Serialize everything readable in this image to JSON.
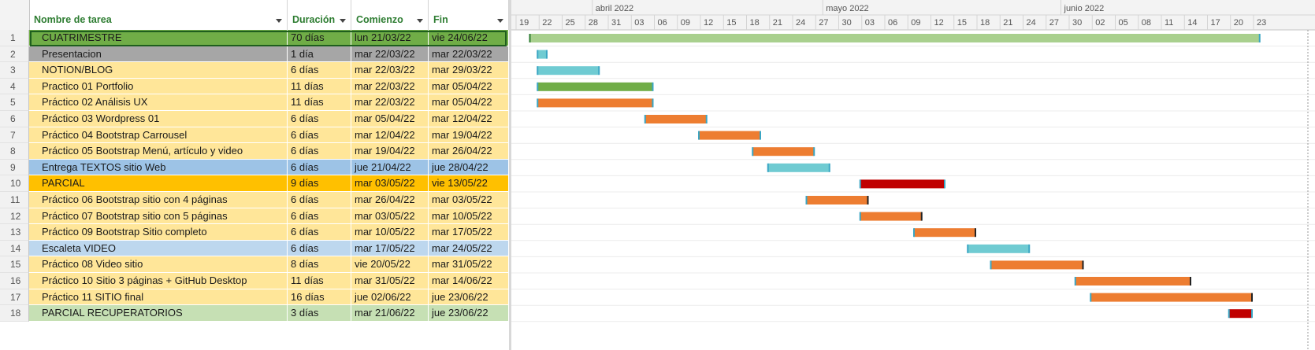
{
  "columns": {
    "name": "Nombre de tarea",
    "duration": "Duración",
    "start": "Comienzo",
    "end": "Fin"
  },
  "timescale": {
    "months": [
      {
        "label": "abril 2022",
        "day": 13
      },
      {
        "label": "mayo 2022",
        "day": 43
      },
      {
        "label": "junio 2022",
        "day": 74
      }
    ],
    "days": [
      "19",
      "22",
      "25",
      "28",
      "31",
      "03",
      "06",
      "09",
      "12",
      "15",
      "18",
      "21",
      "24",
      "27",
      "30",
      "03",
      "06",
      "09",
      "12",
      "15",
      "18",
      "21",
      "24",
      "27",
      "30",
      "02",
      "05",
      "08",
      "11",
      "14",
      "17",
      "20",
      "23"
    ]
  },
  "colors": {
    "summary": "#70ad47",
    "gray": "#a6a6a6",
    "orange": "#ed7d31",
    "teal": "#6fcbd2",
    "red": "#c00000",
    "yellow_bg": "#ffe699",
    "blue_bg": "#9dc3e6",
    "lightblue_bg": "#bdd7ee",
    "gold_bg": "#ffc000",
    "green_bg": "#c6e0b4",
    "green_row": "#70ad47",
    "gray_row": "#a6a6a6"
  },
  "tasks": [
    {
      "id": "1",
      "name": "CUATRIMESTRE",
      "duration": "70 días",
      "start": "lun 21/03/22",
      "end": "vie 24/06/22",
      "bg": "#70ad47",
      "bar": {
        "color": "#a9d08e",
        "s": 2,
        "e": 97
      }
    },
    {
      "id": "2",
      "name": "Presentacion",
      "duration": "1 día",
      "start": "mar 22/03/22",
      "end": "mar 22/03/22",
      "bg": "#a6a6a6",
      "bar": {
        "color": "#6fcbd2",
        "s": 3,
        "e": 4.2
      }
    },
    {
      "id": "3",
      "name": "NOTION/BLOG",
      "duration": "6 días",
      "start": "mar 22/03/22",
      "end": "mar 29/03/22",
      "bg": "#ffe699",
      "bar": {
        "color": "#6fcbd2",
        "s": 3,
        "e": 11
      }
    },
    {
      "id": "4",
      "name": "Practico 01  Portfolio",
      "duration": "11 días",
      "start": "mar 22/03/22",
      "end": "mar 05/04/22",
      "bg": "#ffe699",
      "bar": {
        "color": "#70ad47",
        "s": 3,
        "e": 18
      }
    },
    {
      "id": "5",
      "name": "Práctico 02 Análisis UX",
      "duration": "11 días",
      "start": "mar 22/03/22",
      "end": "mar 05/04/22",
      "bg": "#ffe699",
      "bar": {
        "color": "#ed7d31",
        "s": 3,
        "e": 18
      }
    },
    {
      "id": "6",
      "name": "Práctico 03 Wordpress 01",
      "duration": "6 días",
      "start": "mar 05/04/22",
      "end": "mar 12/04/22",
      "bg": "#ffe699",
      "bar": {
        "color": "#ed7d31",
        "s": 17,
        "e": 25
      }
    },
    {
      "id": "7",
      "name": "Práctico 04 Bootstrap  Carrousel",
      "duration": "6 días",
      "start": "mar 12/04/22",
      "end": "mar 19/04/22",
      "bg": "#ffe699",
      "bar": {
        "color": "#ed7d31",
        "s": 24,
        "e": 32
      }
    },
    {
      "id": "8",
      "name": "Práctico 05 Bootstrap Menú, artículo y video",
      "duration": "6 días",
      "start": "mar 19/04/22",
      "end": "mar 26/04/22",
      "bg": "#ffe699",
      "bar": {
        "color": "#ed7d31",
        "s": 31,
        "e": 39
      }
    },
    {
      "id": "9",
      "name": "Entrega TEXTOS sitio Web",
      "duration": "6 días",
      "start": "jue 21/04/22",
      "end": "jue 28/04/22",
      "bg": "#9dc3e6",
      "bar": {
        "color": "#6fcbd2",
        "s": 33,
        "e": 41
      }
    },
    {
      "id": "10",
      "name": "PARCIAL",
      "duration": "9 días",
      "start": "mar 03/05/22",
      "end": "vie 13/05/22",
      "bg": "#ffc000",
      "bar": {
        "color": "#c00000",
        "s": 45,
        "e": 56
      }
    },
    {
      "id": "11",
      "name": "Práctico 06 Bootstrap sitio con 4 páginas",
      "duration": "6 días",
      "start": "mar 26/04/22",
      "end": "mar 03/05/22",
      "bg": "#ffe699",
      "bar": {
        "color": "#ed7d31",
        "s": 38,
        "e": 46
      }
    },
    {
      "id": "12",
      "name": "Práctico 07 Bootstrap sitio con 5 páginas",
      "duration": "6 días",
      "start": "mar 03/05/22",
      "end": "mar 10/05/22",
      "bg": "#ffe699",
      "bar": {
        "color": "#ed7d31",
        "s": 45,
        "e": 53
      }
    },
    {
      "id": "13",
      "name": "Práctico 09 Bootstrap Sitio completo",
      "duration": "6 días",
      "start": "mar 10/05/22",
      "end": "mar 17/05/22",
      "bg": "#ffe699",
      "bar": {
        "color": "#ed7d31",
        "s": 52,
        "e": 60
      }
    },
    {
      "id": "14",
      "name": "Escaleta VIDEO",
      "duration": "6 días",
      "start": "mar 17/05/22",
      "end": "mar 24/05/22",
      "bg": "#bdd7ee",
      "bar": {
        "color": "#6fcbd2",
        "s": 59,
        "e": 67
      }
    },
    {
      "id": "15",
      "name": "Práctico 08 Video sitio",
      "duration": "8 días",
      "start": "vie 20/05/22",
      "end": "mar 31/05/22",
      "bg": "#ffe699",
      "bar": {
        "color": "#ed7d31",
        "s": 62,
        "e": 74
      }
    },
    {
      "id": "16",
      "name": "Práctico 10  Sitio  3 páginas +  GitHub Desktop",
      "duration": "11 días",
      "start": "mar 31/05/22",
      "end": "mar 14/06/22",
      "bg": "#ffe699",
      "bar": {
        "color": "#ed7d31",
        "s": 73,
        "e": 88
      }
    },
    {
      "id": "17",
      "name": "Práctico 11 SITIO final",
      "duration": "16 días",
      "start": "jue 02/06/22",
      "end": "jue 23/06/22",
      "bg": "#ffe699",
      "bar": {
        "color": "#ed7d31",
        "s": 75,
        "e": 96
      }
    },
    {
      "id": "18",
      "name": "PARCIAL RECUPERATORIOS",
      "duration": "3 días",
      "start": "mar 21/06/22",
      "end": "jue 23/06/22",
      "bg": "#c6e0b4",
      "bar": {
        "color": "#c00000",
        "s": 93,
        "e": 96
      }
    }
  ]
}
